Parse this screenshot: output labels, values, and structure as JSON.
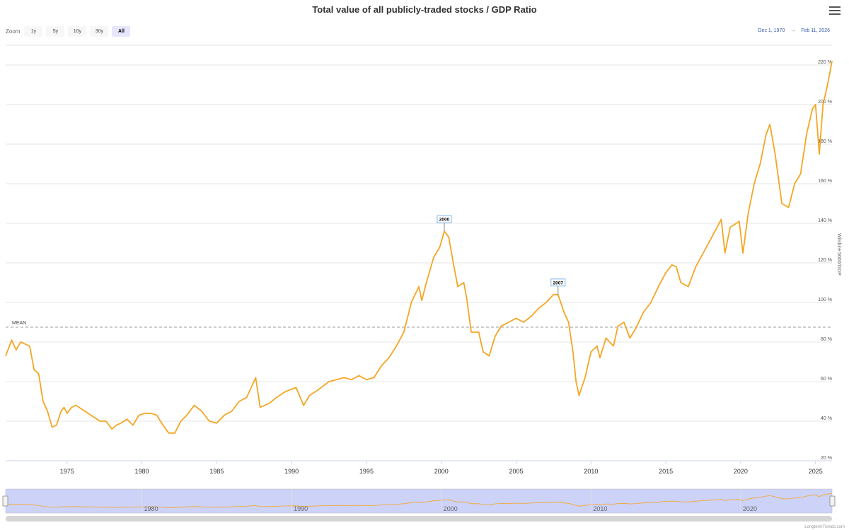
{
  "header": {
    "title": "Total value of all publicly-traded stocks / GDP Ratio"
  },
  "zoom": {
    "label": "Zoom",
    "buttons": [
      "1y",
      "5y",
      "10y",
      "30y",
      "All"
    ],
    "active": "All"
  },
  "range": {
    "from": "Dec 1, 1970",
    "arrow": "→",
    "to": "Feb 11, 2026"
  },
  "credit": "LongtermTrends.com",
  "colors": {
    "line": "#f5a623",
    "mean_line": "#999999",
    "navigator_fill": "#cdd2f8",
    "flag_border": "#7cb5ec"
  },
  "chart_data": {
    "type": "line",
    "title": "Total value of all publicly-traded stocks / GDP Ratio",
    "ylabel": "Wilshire 5000/GDP",
    "xlim": [
      1970.9,
      2026.1
    ],
    "ylim": [
      20,
      230
    ],
    "y_ticks": [
      20,
      40,
      60,
      80,
      100,
      120,
      140,
      160,
      180,
      200,
      220
    ],
    "y_tick_suffix": " %",
    "x_ticks": [
      1975,
      1980,
      1985,
      1990,
      1995,
      2000,
      2005,
      2010,
      2015,
      2020,
      2025
    ],
    "navigator_ticks": [
      1980,
      1990,
      2000,
      2010,
      2020
    ],
    "grid": true,
    "mean": {
      "label": "MEAN",
      "value": 87.5
    },
    "flags": [
      {
        "label": "2000",
        "x": 2000.2,
        "y": 136
      },
      {
        "label": "2007",
        "x": 2007.8,
        "y": 104
      }
    ],
    "series": [
      {
        "x": [
          1970.9,
          1971.3,
          1971.6,
          1971.9,
          1972.2,
          1972.5,
          1972.8,
          1973.1,
          1973.4,
          1973.7,
          1974.0,
          1974.3,
          1974.6,
          1974.8,
          1975.0,
          1975.3,
          1975.6,
          1976.0,
          1976.4,
          1976.8,
          1977.2,
          1977.6,
          1978.0,
          1978.3,
          1978.6,
          1979.0,
          1979.4,
          1979.8,
          1980.2,
          1980.6,
          1981.0,
          1981.4,
          1981.8,
          1982.2,
          1982.6,
          1983.0,
          1983.5,
          1984.0,
          1984.5,
          1985.0,
          1985.5,
          1986.0,
          1986.5,
          1987.0,
          1987.6,
          1987.9,
          1988.5,
          1989.0,
          1989.6,
          1990.3,
          1990.8,
          1991.2,
          1991.8,
          1992.5,
          1993.0,
          1993.5,
          1994.0,
          1994.5,
          1995.0,
          1995.5,
          1996.0,
          1996.5,
          1997.0,
          1997.5,
          1998.0,
          1998.5,
          1998.7,
          1999.0,
          1999.5,
          1999.9,
          2000.2,
          2000.5,
          2000.8,
          2001.1,
          2001.5,
          2001.7,
          2002.0,
          2002.5,
          2002.8,
          2003.2,
          2003.6,
          2004.0,
          2004.5,
          2005.0,
          2005.5,
          2006.0,
          2006.5,
          2007.0,
          2007.5,
          2007.8,
          2008.2,
          2008.5,
          2008.8,
          2009.0,
          2009.2,
          2009.6,
          2010.0,
          2010.4,
          2010.6,
          2011.0,
          2011.5,
          2011.8,
          2012.2,
          2012.6,
          2013.0,
          2013.5,
          2014.0,
          2014.5,
          2015.0,
          2015.4,
          2015.7,
          2016.0,
          2016.5,
          2017.0,
          2017.5,
          2018.0,
          2018.7,
          2018.95,
          2019.3,
          2019.9,
          2020.15,
          2020.5,
          2020.9,
          2021.3,
          2021.7,
          2021.95,
          2022.3,
          2022.75,
          2023.2,
          2023.6,
          2024.0,
          2024.4,
          2024.8,
          2025.0,
          2025.25,
          2025.5,
          2025.8,
          2026.1
        ],
        "values": [
          73,
          81,
          76,
          80,
          79,
          78,
          66,
          64,
          50,
          45,
          37,
          38,
          45,
          47,
          44,
          47,
          48,
          46,
          44,
          42,
          40,
          40,
          36,
          38,
          39,
          41,
          38,
          43,
          44,
          44,
          43,
          38,
          34,
          34,
          40,
          43,
          48,
          45,
          40,
          39,
          43,
          45,
          50,
          52,
          62,
          47,
          49,
          52,
          55,
          57,
          48,
          53,
          56,
          60,
          61,
          62,
          61,
          63,
          61,
          62,
          68,
          72,
          78,
          85,
          100,
          108,
          101,
          110,
          123,
          128,
          136,
          133,
          120,
          108,
          110,
          102,
          85,
          85,
          75,
          73,
          83,
          88,
          90,
          92,
          90,
          93,
          97,
          100,
          104,
          104,
          95,
          90,
          75,
          60,
          53,
          62,
          75,
          78,
          72,
          82,
          78,
          88,
          90,
          82,
          87,
          95,
          100,
          108,
          115,
          119,
          118,
          110,
          108,
          118,
          125,
          132,
          142,
          125,
          138,
          141,
          125,
          145,
          160,
          170,
          185,
          190,
          175,
          150,
          148,
          160,
          165,
          185,
          198,
          200,
          175,
          200,
          210,
          222
        ]
      }
    ]
  }
}
